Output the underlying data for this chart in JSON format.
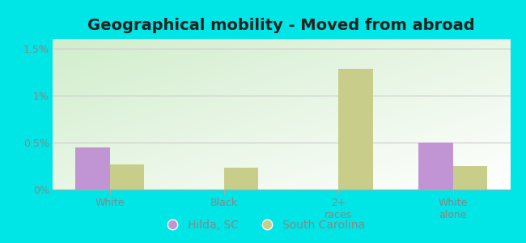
{
  "title": "Geographical mobility - Moved from abroad",
  "categories": [
    "White",
    "Black",
    "2+\nraces",
    "White\nalone"
  ],
  "hilda_values": [
    0.0045,
    0.0,
    0.0,
    0.005
  ],
  "sc_values": [
    0.0027,
    0.0023,
    0.0128,
    0.0025
  ],
  "hilda_color": "#c195d3",
  "sc_color": "#c8cd8a",
  "background_color": "#00e5e5",
  "plot_bg_topleft": "#d4ecd4",
  "plot_bg_topright": "#e8f0e8",
  "plot_bg_bottomleft": "#eef5ee",
  "plot_bg_bottomright": "#ffffff",
  "yticks": [
    0.0,
    0.005,
    0.01,
    0.015
  ],
  "ytick_labels": [
    "0%",
    "0.5%",
    "1%",
    "1.5%"
  ],
  "ylim": [
    0,
    0.016
  ],
  "bar_width": 0.3,
  "legend_labels": [
    "Hilda, SC",
    "South Carolina"
  ],
  "title_fontsize": 14,
  "tick_fontsize": 9,
  "legend_fontsize": 10,
  "axis_text_color": "#888888",
  "title_color": "#222222",
  "grid_color": "#cccccc"
}
